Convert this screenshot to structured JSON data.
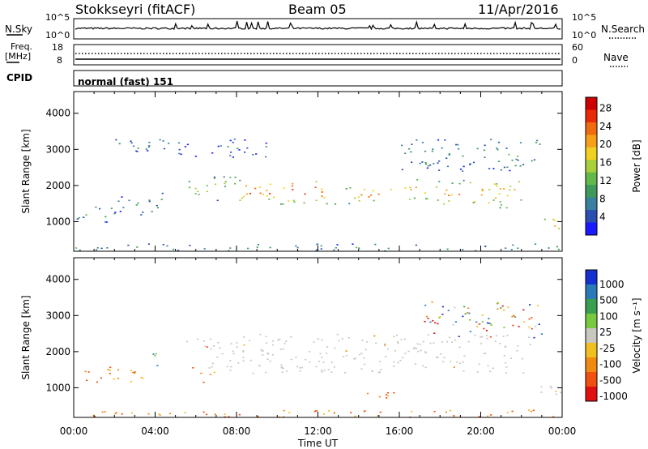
{
  "header": {
    "title": "Stokkseyri (fitACF)",
    "beam": "Beam 05",
    "date": "11/Apr/2016"
  },
  "strip_labels": {
    "nsky": "N.Sky",
    "nsearch": "N.Search",
    "freq": "Freq.",
    "freq_unit": "[MHz]",
    "nave": "Nave",
    "cpid": "CPID",
    "cpid_value": "normal (fast) 151"
  },
  "strip_ticks": {
    "noise_left": [
      "10^5",
      "10^0"
    ],
    "noise_right": [
      "10^5",
      "10^0"
    ],
    "freq_left": [
      "18",
      "8"
    ],
    "nave_right": [
      "60",
      "0"
    ]
  },
  "chart_data": [
    {
      "type": "heatmap",
      "panel": "power",
      "xlabel": "",
      "ylabel": "Slant Range [km]",
      "yticks": [
        1000,
        2000,
        3000,
        4000
      ],
      "ylim": [
        180,
        4600
      ],
      "xlim_hours": [
        0,
        24
      ],
      "colorbar": {
        "label": "Power [dB]",
        "ticks": [
          "4",
          "8",
          "12",
          "16",
          "20",
          "24",
          "28"
        ],
        "colors": [
          "#1a1aff",
          "#2a4fb0",
          "#3b7fa0",
          "#3e9a5a",
          "#62b84a",
          "#a8cf3c",
          "#f0d020",
          "#f5a018",
          "#f06a10",
          "#e82808",
          "#cc0000"
        ]
      },
      "bands": [
        {
          "t0": 0.0,
          "t1": 2.0,
          "r0": 1000,
          "r1": 1500,
          "level": 0.35
        },
        {
          "t0": 2.0,
          "t1": 4.5,
          "r0": 1200,
          "r1": 1800,
          "level": 0.25
        },
        {
          "t0": 5.5,
          "t1": 8.0,
          "r0": 1600,
          "r1": 2300,
          "level": 0.5
        },
        {
          "t0": 8.0,
          "t1": 12.0,
          "r0": 1500,
          "r1": 2200,
          "level": 0.85
        },
        {
          "t0": 12.0,
          "t1": 16.0,
          "r0": 1500,
          "r1": 2000,
          "level": 0.75
        },
        {
          "t0": 16.0,
          "t1": 18.0,
          "r0": 1600,
          "r1": 2200,
          "level": 0.7
        },
        {
          "t0": 18.0,
          "t1": 22.0,
          "r0": 1400,
          "r1": 2200,
          "level": 0.7
        },
        {
          "t0": 22.5,
          "t1": 24.0,
          "r0": 800,
          "r1": 1100,
          "level": 0.9
        },
        {
          "t0": 0.0,
          "t1": 24.0,
          "r0": 200,
          "r1": 400,
          "level": 0.3
        },
        {
          "t0": 2.0,
          "t1": 10.0,
          "r0": 2800,
          "r1": 3300,
          "level": 0.2
        },
        {
          "t0": 16.0,
          "t1": 23.0,
          "r0": 2400,
          "r1": 3300,
          "level": 0.3
        }
      ]
    },
    {
      "type": "heatmap",
      "panel": "velocity",
      "xlabel": "Time UT",
      "ylabel": "Slant Range [km]",
      "yticks": [
        1000,
        2000,
        3000,
        4000
      ],
      "ylim": [
        180,
        4600
      ],
      "xticks": [
        "00:00",
        "04:00",
        "08:00",
        "12:00",
        "16:00",
        "20:00",
        "00:00"
      ],
      "xlim_hours": [
        0,
        24
      ],
      "colorbar": {
        "label": "Velocity [m s⁻¹]",
        "ticks": [
          "1000",
          "500",
          "100",
          "25",
          "-25",
          "-100",
          "-500",
          "-1000"
        ],
        "colors": [
          "#1530d0",
          "#2a7ab8",
          "#3aa050",
          "#78c840",
          "#c8c8c0",
          "#f0c020",
          "#f08a10",
          "#f05010",
          "#e01010"
        ]
      },
      "bands": [
        {
          "t0": 0.0,
          "t1": 3.5,
          "r0": 1100,
          "r1": 1600,
          "kind": "neg"
        },
        {
          "t0": 3.5,
          "t1": 4.5,
          "r0": 1600,
          "r1": 2000,
          "kind": "pos"
        },
        {
          "t0": 5.5,
          "t1": 8.0,
          "r0": 1500,
          "r1": 2400,
          "kind": "grey"
        },
        {
          "t0": 8.0,
          "t1": 22.5,
          "r0": 1400,
          "r1": 2500,
          "kind": "grey"
        },
        {
          "t0": 22.5,
          "t1": 24.0,
          "r0": 800,
          "r1": 1200,
          "kind": "grey"
        },
        {
          "t0": 6.0,
          "t1": 7.0,
          "r0": 1100,
          "r1": 1500,
          "kind": "neg"
        },
        {
          "t0": 14.0,
          "t1": 16.0,
          "r0": 600,
          "r1": 900,
          "kind": "neg"
        },
        {
          "t0": 17.0,
          "t1": 23.0,
          "r0": 2400,
          "r1": 3400,
          "kind": "mix"
        },
        {
          "t0": 0.0,
          "t1": 24.0,
          "r0": 200,
          "r1": 400,
          "kind": "neg"
        }
      ]
    }
  ]
}
